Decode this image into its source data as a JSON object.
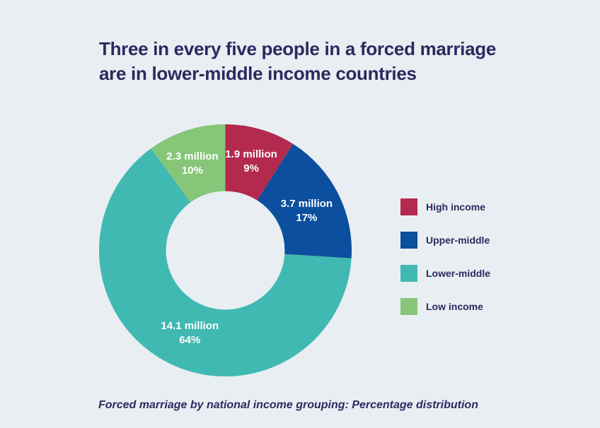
{
  "page": {
    "background_color": "#e9eef3",
    "text_color": "#2b2a5e"
  },
  "header": {
    "title_line1": "Three in every five people in a forced marriage",
    "title_line2": "are in lower-middle income countries"
  },
  "caption": "Forced marriage by national income grouping: Percentage distribution",
  "chart_data": {
    "type": "pie",
    "subtype": "donut",
    "title": "Forced marriage by national income grouping: Percentage distribution",
    "unit": "million people in forced marriage",
    "start_angle_deg": 0,
    "direction": "clockwise",
    "legend_position": "right",
    "donut_hole_ratio": 0.47,
    "label_color": "#ffffff",
    "slices": [
      {
        "label": "High income",
        "value_millions": 1.9,
        "percent": 9,
        "value_label": "1.9 million",
        "percent_label": "9%",
        "color": "#b32a4e"
      },
      {
        "label": "Upper-middle",
        "value_millions": 3.7,
        "percent": 17,
        "value_label": "3.7 million",
        "percent_label": "17%",
        "color": "#0b4f9e"
      },
      {
        "label": "Lower-middle",
        "value_millions": 14.1,
        "percent": 64,
        "value_label": "14.1 million",
        "percent_label": "64%",
        "color": "#41b9b3"
      },
      {
        "label": "Low income",
        "value_millions": 2.3,
        "percent": 10,
        "value_label": "2.3 million",
        "percent_label": "10%",
        "color": "#86c678"
      }
    ]
  }
}
